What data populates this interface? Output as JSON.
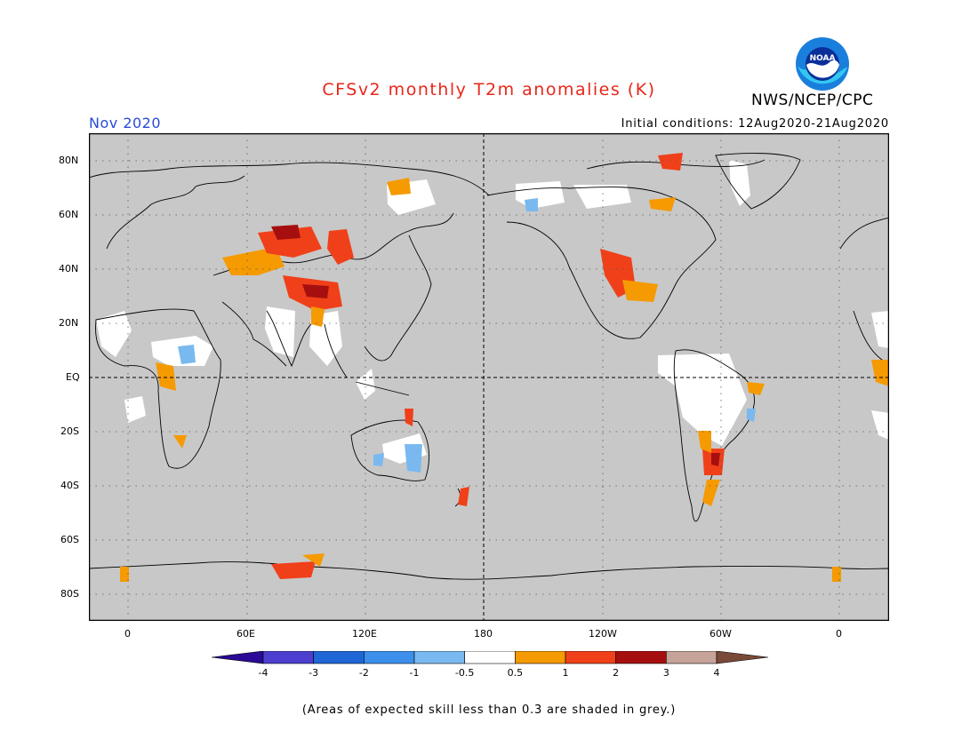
{
  "title": "CFSv2 monthly T2m anomalies (K)",
  "agency": "NWS/NCEP/CPC",
  "logo_text": "NOAA",
  "month": "Nov 2020",
  "initial_conditions": "Initial conditions: 12Aug2020-21Aug2020",
  "lat_ticks": [
    "80N",
    "60N",
    "40N",
    "20N",
    "EQ",
    "20S",
    "40S",
    "60S",
    "80S"
  ],
  "lon_ticks": [
    "0",
    "60E",
    "120E",
    "180",
    "120W",
    "60W",
    "0"
  ],
  "colorbar": {
    "labels": [
      "-4",
      "-3",
      "-2",
      "-1",
      "-0.5",
      "0.5",
      "1",
      "2",
      "3",
      "4"
    ],
    "colors": [
      "#2a0a96",
      "#4c3fcf",
      "#1f66d6",
      "#3d8fec",
      "#7ab9f0",
      "#ffffff",
      "#f59a00",
      "#f0401a",
      "#a60f0f",
      "#c6a49a",
      "#7a4a38"
    ]
  },
  "skill_note": "(Areas of expected skill less than 0.3 are shaded in grey.)",
  "colors": {
    "ocean_grey": "#c8c8c8",
    "coast": "#000000",
    "title": "#e8271a",
    "month": "#2a4bd6"
  }
}
